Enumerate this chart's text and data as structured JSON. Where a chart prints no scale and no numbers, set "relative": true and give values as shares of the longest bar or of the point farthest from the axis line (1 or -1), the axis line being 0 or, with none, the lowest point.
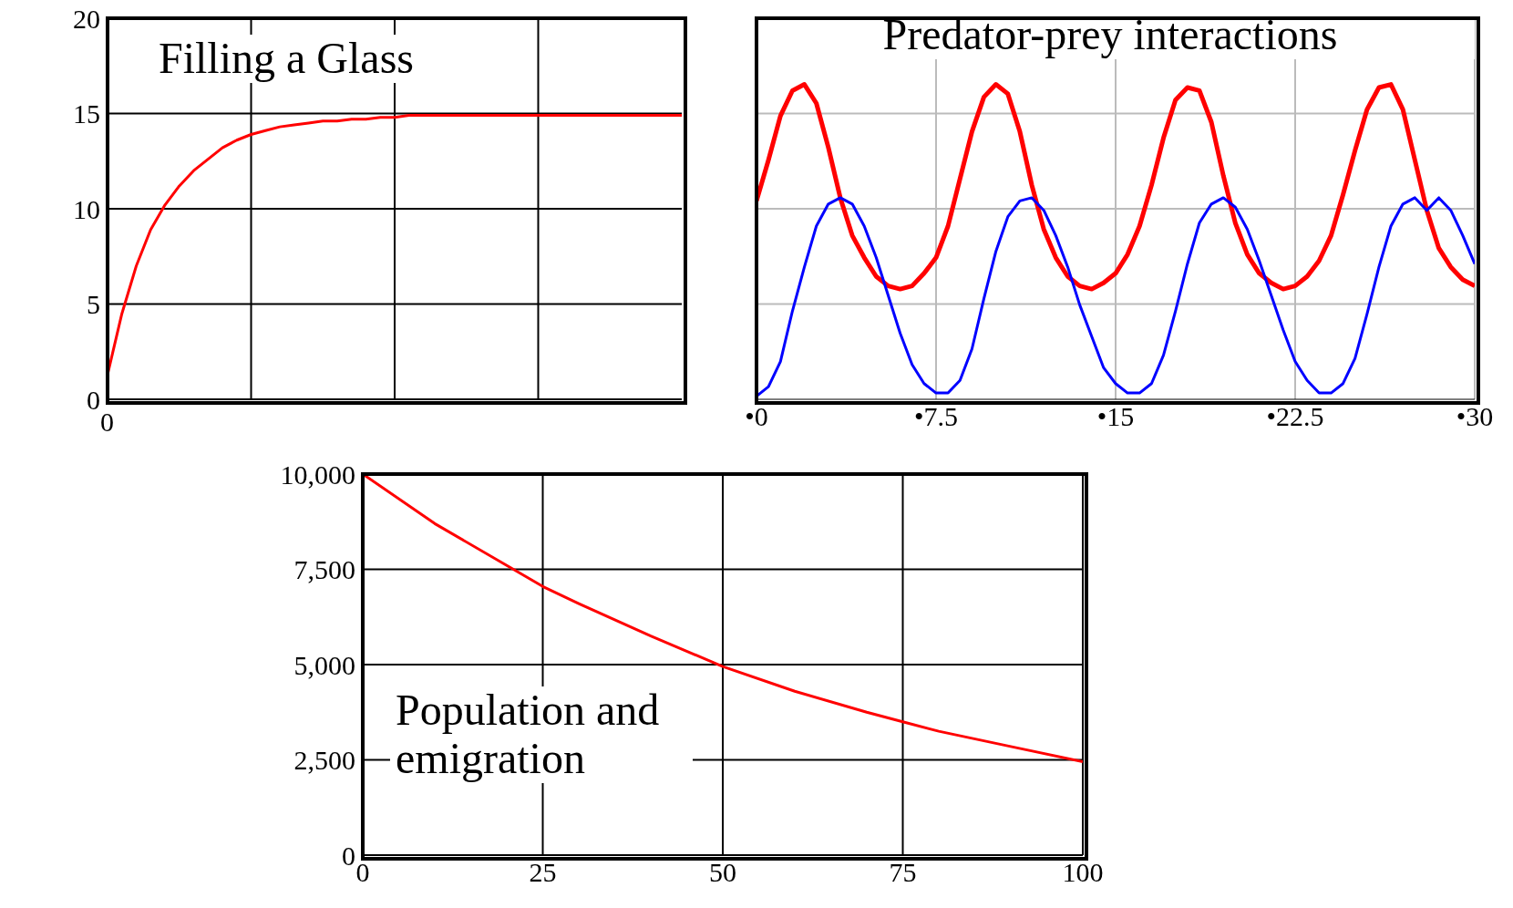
{
  "chart_data": [
    {
      "type": "line",
      "title": "Filling a Glass",
      "categories": [
        null,
        null,
        null,
        null,
        null,
        null,
        null,
        null,
        null,
        null,
        null,
        null,
        null,
        null,
        null,
        null,
        null,
        null,
        null,
        null,
        null,
        null,
        null,
        null,
        null,
        null,
        null,
        null,
        null,
        null,
        null,
        null,
        null,
        null,
        null,
        null,
        null,
        null,
        null,
        null,
        null
      ],
      "series": [
        {
          "color": "#ff0000",
          "values": [
            1.3,
            4.5,
            7.0,
            8.9,
            10.2,
            11.2,
            12.0,
            12.6,
            13.2,
            13.6,
            13.9,
            14.1,
            14.3,
            14.4,
            14.5,
            14.6,
            14.6,
            14.7,
            14.7,
            14.8,
            14.8,
            14.9,
            14.9,
            14.9,
            14.9,
            14.9,
            14.9,
            14.9,
            14.9,
            14.9,
            14.9,
            14.9,
            14.9,
            14.9,
            14.9,
            14.9,
            14.9,
            14.9,
            14.9,
            14.9,
            14.9
          ]
        }
      ],
      "ylim": [
        0,
        20
      ],
      "yticks": [
        0,
        5,
        10,
        15,
        20
      ],
      "tick_labels": "y",
      "annotations": [
        "0"
      ],
      "grid": true
    },
    {
      "type": "line",
      "title": "Predator-prey interactions",
      "x": [
        0,
        0.5,
        1,
        1.5,
        2,
        2.5,
        3,
        3.5,
        4,
        4.5,
        5,
        5.5,
        6,
        6.5,
        7,
        7.5,
        8,
        8.5,
        9,
        9.5,
        10,
        10.5,
        11,
        11.5,
        12,
        12.5,
        13,
        13.5,
        14,
        14.5,
        15,
        15.5,
        16,
        16.5,
        17,
        17.5,
        18,
        18.5,
        19,
        19.5,
        20,
        20.5,
        21,
        21.5,
        22,
        22.5,
        23,
        23.5,
        24,
        24.5,
        25,
        25.5,
        26,
        26.5,
        27,
        27.5,
        28,
        28.5,
        29,
        29.5,
        30
      ],
      "series": [
        {
          "color": "#ff0000",
          "values": [
            0.63,
            0.76,
            0.9,
            0.98,
            1.0,
            0.94,
            0.8,
            0.64,
            0.52,
            0.45,
            0.39,
            0.36,
            0.35,
            0.36,
            0.4,
            0.45,
            0.55,
            0.7,
            0.85,
            0.96,
            1.0,
            0.97,
            0.85,
            0.68,
            0.54,
            0.45,
            0.39,
            0.36,
            0.35,
            0.37,
            0.4,
            0.46,
            0.55,
            0.68,
            0.83,
            0.95,
            0.99,
            0.98,
            0.88,
            0.71,
            0.56,
            0.46,
            0.4,
            0.37,
            0.35,
            0.36,
            0.39,
            0.44,
            0.52,
            0.65,
            0.79,
            0.92,
            0.99,
            1.0,
            0.92,
            0.76,
            0.6,
            0.48,
            0.42,
            0.38,
            0.36
          ]
        },
        {
          "color": "#0000ff",
          "values": [
            0.01,
            0.04,
            0.12,
            0.28,
            0.42,
            0.55,
            0.62,
            0.64,
            0.62,
            0.55,
            0.45,
            0.33,
            0.21,
            0.11,
            0.05,
            0.02,
            0.02,
            0.06,
            0.16,
            0.32,
            0.47,
            0.58,
            0.63,
            0.64,
            0.6,
            0.52,
            0.42,
            0.3,
            0.2,
            0.1,
            0.05,
            0.02,
            0.02,
            0.05,
            0.14,
            0.28,
            0.43,
            0.56,
            0.62,
            0.64,
            0.61,
            0.54,
            0.44,
            0.33,
            0.22,
            0.12,
            0.06,
            0.02,
            0.02,
            0.05,
            0.13,
            0.27,
            0.42,
            0.55,
            0.62,
            0.64,
            0.6,
            0.64,
            0.6,
            0.52,
            0.43
          ]
        }
      ],
      "relative": true,
      "xlim": [
        0,
        30
      ],
      "xticks": [
        {
          "value": 0,
          "label": "•0"
        },
        {
          "value": 7.5,
          "label": "•7.5"
        },
        {
          "value": 15,
          "label": "•15"
        },
        {
          "value": 22.5,
          "label": "•22.5"
        },
        {
          "value": 30,
          "label": "•30"
        }
      ],
      "tick_labels": "x",
      "grid": true
    },
    {
      "type": "line",
      "title": "Population and emigration",
      "x": [
        0,
        10,
        20,
        25,
        30,
        40,
        50,
        60,
        70,
        75,
        80,
        90,
        100
      ],
      "series": [
        {
          "color": "#ff0000",
          "values": [
            10000,
            8700,
            7600,
            7050,
            6600,
            5750,
            4950,
            4300,
            3750,
            3500,
            3250,
            2850,
            2450
          ]
        }
      ],
      "xlim": [
        0,
        100
      ],
      "xticks": [
        0,
        25,
        50,
        75,
        100
      ],
      "ylim": [
        0,
        10000
      ],
      "yticks": [
        0,
        {
          "value": 2500,
          "label": "2,500"
        },
        {
          "value": 5000,
          "label": "5,000"
        },
        {
          "value": 7500,
          "label": "7,500"
        },
        {
          "value": 10000,
          "label": "10,000"
        }
      ],
      "grid": true
    }
  ]
}
